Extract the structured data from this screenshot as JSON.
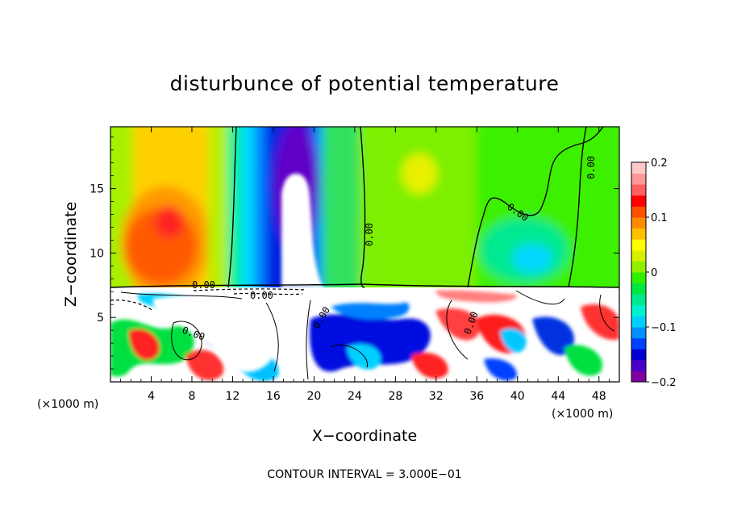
{
  "chart_data": {
    "type": "heatmap",
    "title": "disturbunce of potential temperature",
    "xlabel": "X−coordinate",
    "ylabel": "Z−coordinate",
    "x_unit": "(×1000 m)",
    "x_unit_right": "(×1000 m)",
    "x_ticks": [
      "4",
      "8",
      "12",
      "16",
      "20",
      "24",
      "28",
      "32",
      "36",
      "40",
      "44",
      "48"
    ],
    "x_tick_values": [
      4,
      8,
      12,
      16,
      20,
      24,
      28,
      32,
      36,
      40,
      44,
      48
    ],
    "y_ticks": [
      "5",
      "10",
      "15"
    ],
    "y_tick_values": [
      5,
      10,
      15
    ],
    "xlim": [
      0,
      50
    ],
    "ylim": [
      0,
      19.8
    ],
    "colorbar": {
      "labels": [
        "0.2",
        "0.1",
        "0",
        "−0.1",
        "−0.2"
      ],
      "values": [
        0.2,
        0.1,
        0,
        -0.1,
        -0.2
      ],
      "range": [
        -0.2,
        0.2
      ],
      "colors": [
        "#7f00a0",
        "#4b00c8",
        "#0000d0",
        "#0040ff",
        "#0090ff",
        "#00d0ff",
        "#00f0d0",
        "#00e890",
        "#00e840",
        "#30f000",
        "#90f000",
        "#d8f000",
        "#ffff00",
        "#ffc000",
        "#ff8c00",
        "#ff5000",
        "#ff0000",
        "#ff6060",
        "#ff9898",
        "#ffc8c8"
      ]
    },
    "contour_labels": [
      "0.00",
      "0.00",
      "0.00",
      "0.00",
      "0.00",
      "0.00",
      "0.00",
      "0.00"
    ],
    "contour_interval_text": "CONTOUR INTERVAL = 3.000E−01",
    "grid": false,
    "legend": "colorbar-right"
  }
}
